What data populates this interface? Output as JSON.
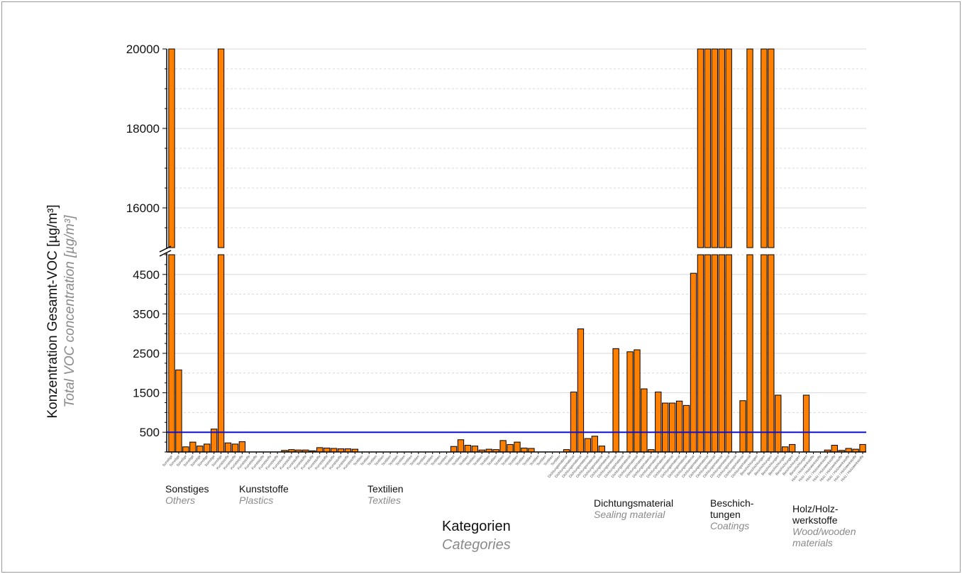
{
  "chart_data": {
    "type": "bar",
    "ylabel_de": "Konzentration Gesamt-VOC [µg/m³]",
    "ylabel_en": "Total VOC concentration [µg/m³]",
    "xlabel_de": "Kategorien",
    "xlabel_en": "Categories",
    "upper_ticks": [
      "16000",
      "18000",
      "20000"
    ],
    "lower_ticks": [
      "500",
      "1500",
      "2500",
      "3500",
      "4500"
    ],
    "upper_range": [
      15000,
      20000
    ],
    "lower_range": [
      0,
      5000
    ],
    "threshold": 500,
    "threshold_color": "#1010d0",
    "bar_color": "#ff8000",
    "categories": [
      {
        "de": "Sonstiges",
        "en": "Others",
        "tick": "Sonstige",
        "values": [
          20000,
          2080,
          130,
          250,
          150,
          200,
          580,
          20000
        ]
      },
      {
        "de": "Kunststoffe",
        "en": "Plastics",
        "tick": "Kunststoffe",
        "values": [
          230,
          200,
          260,
          0,
          0,
          0,
          0,
          0,
          40,
          60,
          50,
          50,
          30,
          110,
          100,
          90,
          80,
          80,
          70
        ]
      },
      {
        "de": "Textilien",
        "en": "Textiles",
        "tick": "Textilien",
        "values": [
          0,
          0,
          0,
          0,
          0,
          0,
          0,
          0,
          0,
          0,
          0,
          0,
          0,
          140,
          310,
          170,
          150,
          50,
          70,
          60,
          290,
          190,
          250,
          100,
          90,
          0,
          0,
          0,
          0
        ]
      },
      {
        "de": "Dichtungsmaterial",
        "en": "Sealing material",
        "tick": "Dichtungsmaterial",
        "values": [
          60,
          1520,
          3120,
          340,
          400,
          150,
          0,
          2620,
          0,
          2540,
          2590,
          1600,
          60,
          1520,
          1240,
          1240,
          1290,
          1180,
          4530,
          20000,
          20000,
          20000,
          20000,
          20000,
          0,
          1300,
          20000
        ]
      },
      {
        "de": "Beschich-\ntungen",
        "en": "Coatings",
        "tick": "Beschichtungen",
        "values": [
          0,
          20000,
          20000,
          1440,
          130,
          190,
          0,
          1440
        ]
      },
      {
        "de": "Holz/Holz-\nwerkstoffe",
        "en": "Wood/wooden\nmaterials",
        "tick": "Holz / Holzwerkstoffe",
        "values": [
          0,
          0,
          50,
          170,
          40,
          90,
          70,
          190
        ]
      }
    ]
  }
}
